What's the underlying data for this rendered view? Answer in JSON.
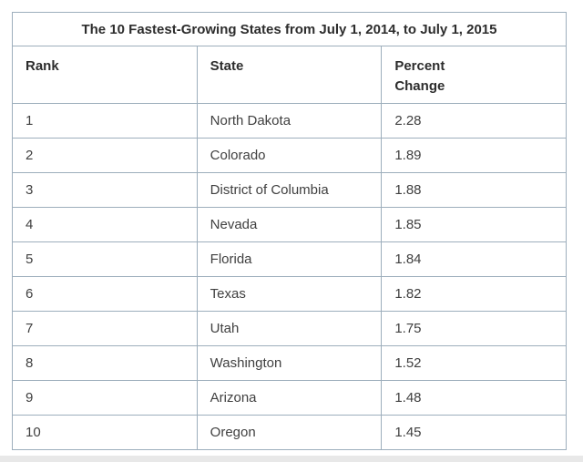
{
  "chart_data": {
    "type": "table",
    "title": "The 10 Fastest-Growing States from July 1, 2014, to July 1, 2015",
    "columns": [
      "Rank",
      "State",
      "Percent Change"
    ],
    "rows": [
      {
        "rank": "1",
        "state": "North Dakota",
        "percent_change": "2.28"
      },
      {
        "rank": "2",
        "state": "Colorado",
        "percent_change": "1.89"
      },
      {
        "rank": "3",
        "state": "District of Columbia",
        "percent_change": "1.88"
      },
      {
        "rank": "4",
        "state": "Nevada",
        "percent_change": "1.85"
      },
      {
        "rank": "5",
        "state": "Florida",
        "percent_change": "1.84"
      },
      {
        "rank": "6",
        "state": "Texas",
        "percent_change": "1.82"
      },
      {
        "rank": "7",
        "state": "Utah",
        "percent_change": "1.75"
      },
      {
        "rank": "8",
        "state": "Washington",
        "percent_change": "1.52"
      },
      {
        "rank": "9",
        "state": "Arizona",
        "percent_change": "1.48"
      },
      {
        "rank": "10",
        "state": "Oregon",
        "percent_change": "1.45"
      }
    ],
    "layout": {
      "grid": "on",
      "title_position": "top-center",
      "header_style": "bold-left-aligned",
      "percent_change_header_wraps": "two-lines"
    }
  },
  "colors": {
    "table_border": "#9daebc",
    "title_text": "#2d2d2d",
    "cell_text": "#404040",
    "page_background": "#ffffff",
    "bottom_strip": "#e8e8e8"
  }
}
